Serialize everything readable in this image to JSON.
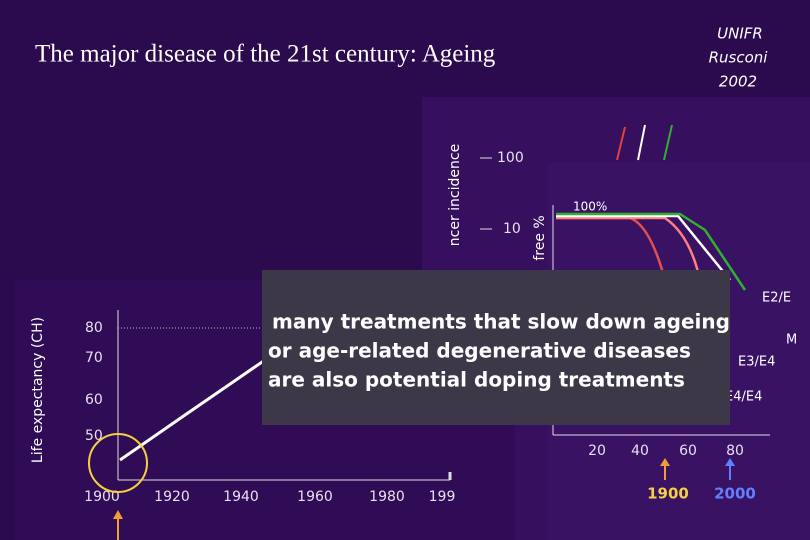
{
  "header": {
    "title": "The major disease of the 21st century: Ageing",
    "credit": [
      "UNIFR",
      "Rusconi",
      "2002"
    ]
  },
  "life_expectancy": {
    "axis_label": "Life expectancy (CH)",
    "yticks": [
      "80",
      "70",
      "60",
      "50"
    ],
    "xticks": [
      "1900",
      "1920",
      "1940",
      "1960",
      "1980",
      "199"
    ]
  },
  "cancer": {
    "axis_label": "ncer incidence",
    "yticks": [
      "100",
      "10"
    ]
  },
  "survival": {
    "axis_label": "free %",
    "top_label": "100%",
    "xticks": [
      "20",
      "40",
      "60",
      "80"
    ],
    "curve_labels": [
      "E2/E",
      "M",
      "E3/E4",
      "E4/E4"
    ],
    "years": [
      "1900",
      "2000"
    ]
  },
  "overlay": {
    "lines": [
      "many treatments that slow down ageing",
      "or age-related degenerative diseases",
      "are also potential doping treatments"
    ]
  }
}
